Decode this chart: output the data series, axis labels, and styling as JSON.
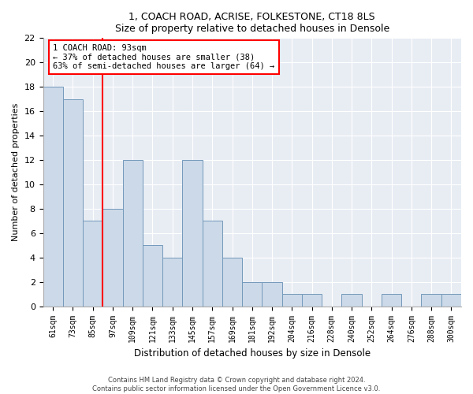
{
  "title1": "1, COACH ROAD, ACRISE, FOLKESTONE, CT18 8LS",
  "title2": "Size of property relative to detached houses in Densole",
  "xlabel": "Distribution of detached houses by size in Densole",
  "ylabel": "Number of detached properties",
  "categories": [
    "61sqm",
    "73sqm",
    "85sqm",
    "97sqm",
    "109sqm",
    "121sqm",
    "133sqm",
    "145sqm",
    "157sqm",
    "169sqm",
    "181sqm",
    "192sqm",
    "204sqm",
    "216sqm",
    "228sqm",
    "240sqm",
    "252sqm",
    "264sqm",
    "276sqm",
    "288sqm",
    "300sqm"
  ],
  "values": [
    18,
    17,
    7,
    8,
    12,
    5,
    4,
    12,
    7,
    4,
    2,
    2,
    1,
    1,
    0,
    1,
    0,
    1,
    0,
    1,
    1
  ],
  "bar_color": "#ccd9e8",
  "bar_edge_color": "#7399bb",
  "background_color": "#e8edf4",
  "red_line_x": 2.5,
  "annotation_text": "1 COACH ROAD: 93sqm\n← 37% of detached houses are smaller (38)\n63% of semi-detached houses are larger (64) →",
  "annotation_box_color": "white",
  "annotation_box_edge": "red",
  "ylim": [
    0,
    22
  ],
  "yticks": [
    0,
    2,
    4,
    6,
    8,
    10,
    12,
    14,
    16,
    18,
    20,
    22
  ],
  "footer1": "Contains HM Land Registry data © Crown copyright and database right 2024.",
  "footer2": "Contains public sector information licensed under the Open Government Licence v3.0.",
  "grid_color": "#ffffff",
  "spine_color": "#aaaaaa"
}
